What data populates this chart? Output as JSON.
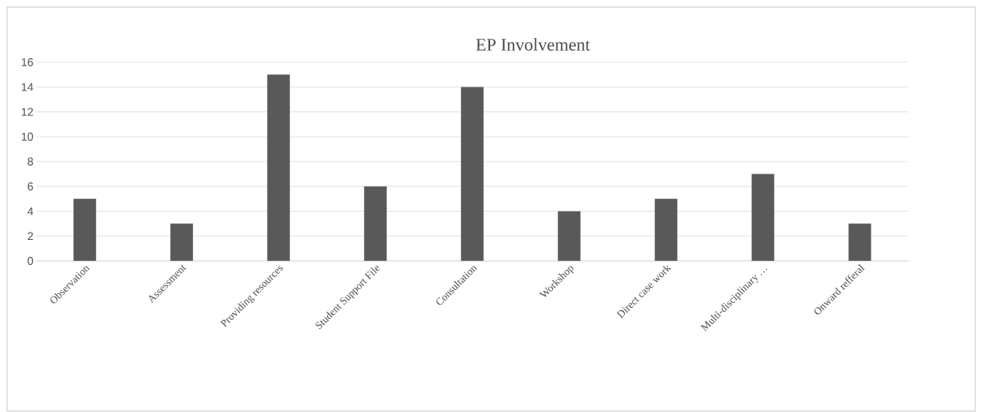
{
  "chart_data": {
    "type": "bar",
    "title": "EP Involvement",
    "categories": [
      "Observation",
      "Assessment",
      "Providing resources",
      "Student Support File",
      "Consultation",
      "Workshop",
      "Direct case work",
      "Multi-disciplinary …",
      "Onward refferal"
    ],
    "values": [
      5,
      3,
      15,
      6,
      14,
      4,
      5,
      7,
      3
    ],
    "color": "#595959",
    "ylim": [
      0,
      16
    ],
    "yticks": [
      0,
      2,
      4,
      6,
      8,
      10,
      12,
      14,
      16
    ],
    "grid": "y"
  }
}
